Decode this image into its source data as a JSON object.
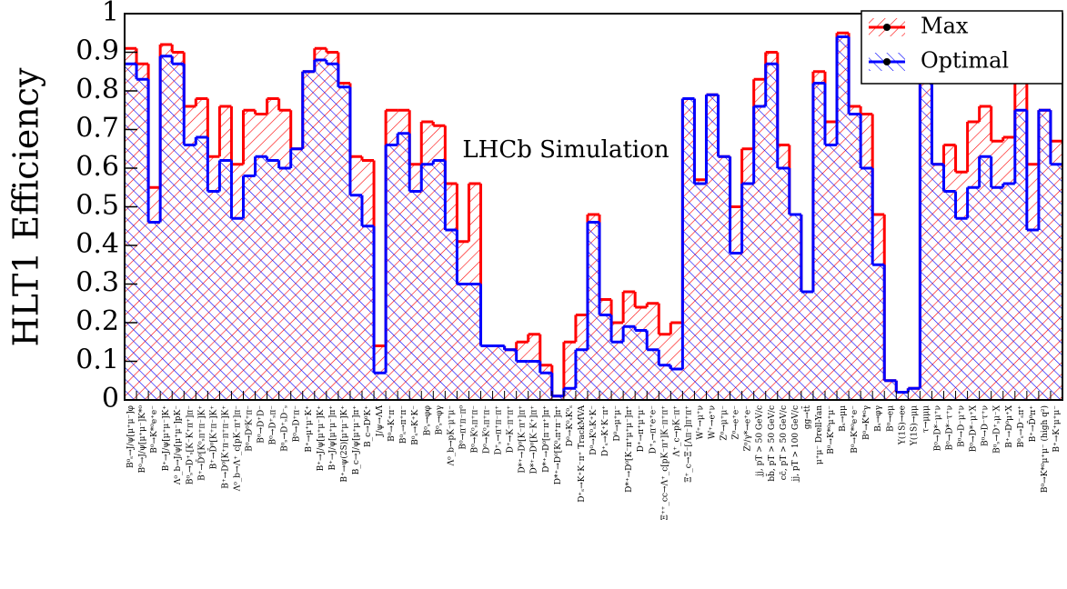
{
  "chart_data": {
    "type": "step-histogram",
    "ylabel": "HLT1 Efficiency",
    "annotation": "LHCb Simulation",
    "ylim": [
      0,
      1
    ],
    "yticks": [
      0,
      0.1,
      0.2,
      0.3,
      0.4,
      0.5,
      0.6,
      0.7,
      0.8,
      0.9,
      1
    ],
    "legend": "upper right",
    "categories": [
      "B⁰ₛ→J/ψ[μ⁺μ⁻]φ",
      "B⁰→J/ψ[μ⁺μ⁻]K*⁰",
      "B⁰→K*⁰e⁺e⁻",
      "B⁺→J/ψ[μ⁺μ⁻]K⁺",
      "Λ⁰_b→J/ψ[μ⁺μ⁻]pK⁻",
      "B⁰ₛ→D⁺ₛ[K⁻K⁺π⁺]π⁻",
      "B⁺→D̄⁰[K⁰ₛπ⁺π⁻]K⁺",
      "B⁺→D̄⁰[K⁺π⁻]K⁺",
      "B⁺→D⁰[K⁺π⁻π⁺π⁻]K⁺",
      "Λ⁰_b→Λ⁺_c[pK⁻π⁺]π⁻",
      "B⁰→D⁰K⁺π⁻",
      "B⁰→D⁺D⁻",
      "B⁰→D⁺ₛπ⁻",
      "B⁰ₛ→D⁺ₛD⁻ₛ",
      "B⁰→D⁺π⁻",
      "B⁺→μ⁺μ⁻K⁺",
      "B⁺→J/ψ[μ⁺μ⁻]K⁺",
      "B⁺→J/ψ[μ⁺μ⁻]π⁺",
      "B⁺→ψ(2S)[μ⁺μ⁻]K⁺",
      "B_c→J/ψ[μ⁺μ⁻]π⁺",
      "B_c→D⁰K⁺",
      "J/ψ→ΛΛ̄",
      "B⁰→K⁺π⁻",
      "B⁰ₛ→π⁺π⁻",
      "B⁰ₛ→K⁺K⁻",
      "B⁰ₛ→φφ",
      "B⁰ₛ→φγ",
      "Λ⁰_b→pK⁻μ⁺μ⁻",
      "B⁰→π⁺π⁻π⁰",
      "B⁰→K⁰ₛπ⁺π⁻",
      "D⁰→K⁰ₛπ⁺π⁻",
      "D⁺ₛ→π⁺π⁻π⁺",
      "D⁺→K⁻π⁺π⁺",
      "D*⁺→D⁰[K⁻π⁺]π⁺",
      "D*⁺→D⁰[K⁻K⁺]π⁺",
      "D*⁺→D⁰[π⁻π⁺]π⁺",
      "D*⁺→D⁰[K⁰ₛπ⁺π⁻]π⁺",
      "D⁰→K⁰ₛK⁰ₛ",
      "D⁺ₛ→K⁺K⁻π⁺ TrackMVA",
      "D⁰→K⁰ₛK⁺K⁻",
      "D⁺ₛ→K⁺K⁻π⁺",
      "D⁰→μ⁺μ⁻",
      "D*⁺→D⁰[K⁻π⁺μ⁺μ⁻]π⁺",
      "D⁺→π⁺μ⁺μ⁻",
      "D⁺ₛ→π⁺e⁺e⁻",
      "Ξ⁺⁺_cc→Λ⁺_c[pK⁻π⁺]K⁻π⁺π⁺",
      "Λ⁺_c→pK⁻π⁺",
      "Ξ⁺_c→Ξ⁻[Λπ⁻]π⁺π⁺",
      "W⁺→μ⁺ν",
      "W⁺→e⁺ν",
      "Z⁰→μ⁺μ⁻",
      "Z⁰→e⁺e⁻",
      "Z⁰/γ*→e⁺e⁻",
      "jj, pT > 50 GeV/c",
      "bb̄, pT > 50 GeV/c",
      "cc̄, pT > 50 GeV/c",
      "jj, pT > 100 GeV/c",
      "gg→tt̄",
      "μ⁺μ⁻ Drell-Yan",
      "B⁰→K*⁰μ⁺μ⁻",
      "Bₛ→μμ",
      "B⁰→K*⁰e⁺e⁻",
      "B⁰→K*⁰γ",
      "Bₛ→φγ",
      "B⁰→eμ",
      "Υ(1S)→ee",
      "Υ(1S)→μμ",
      "τ→μμμ",
      "B⁰→D*⁻μ⁺ν",
      "B⁰→D*⁻τ⁺ν",
      "B⁰→D⁻μ⁺ν",
      "B⁰→D*⁻μ⁺X",
      "B⁰→D⁻τ⁺ν",
      "B⁰ₛ→D⁺ₛμ⁻X",
      "B⁺→D⁰μ⁺X",
      "B⁰ₛ→D⁻ₛπ⁺",
      "B⁺→D̄⁰π⁺",
      "B⁰→K*⁰μ⁺μ⁻ (high q²)",
      "B⁺→K⁺μ⁺μ⁻"
    ],
    "series": [
      {
        "name": "Max",
        "color": "#ff0000",
        "values": [
          0.91,
          0.87,
          0.55,
          0.92,
          0.9,
          0.76,
          0.78,
          0.63,
          0.76,
          0.61,
          0.75,
          0.74,
          0.78,
          0.75,
          0.65,
          0.85,
          0.91,
          0.9,
          0.82,
          0.63,
          0.62,
          0.14,
          0.75,
          0.75,
          0.61,
          0.72,
          0.71,
          0.56,
          0.41,
          0.56,
          0.14,
          0.14,
          0.13,
          0.15,
          0.17,
          0.09,
          0.01,
          0.15,
          0.22,
          0.48,
          0.26,
          0.2,
          0.28,
          0.24,
          0.25,
          0.17,
          0.2,
          0.78,
          0.57,
          0.79,
          0.63,
          0.5,
          0.65,
          0.83,
          0.9,
          0.66,
          0.48,
          0.28,
          0.85,
          0.72,
          0.95,
          0.76,
          0.74,
          0.48,
          0.05,
          0.02,
          0.03,
          0.9,
          0.61,
          0.66,
          0.59,
          0.72,
          0.76,
          0.67,
          0.68,
          0.83,
          0.61,
          0.75,
          0.67
        ]
      },
      {
        "name": "Optimal",
        "color": "#0000ff",
        "values": [
          0.87,
          0.83,
          0.46,
          0.89,
          0.87,
          0.66,
          0.68,
          0.54,
          0.62,
          0.47,
          0.58,
          0.63,
          0.62,
          0.6,
          0.65,
          0.85,
          0.88,
          0.87,
          0.81,
          0.53,
          0.45,
          0.07,
          0.66,
          0.69,
          0.54,
          0.61,
          0.62,
          0.44,
          0.3,
          0.3,
          0.14,
          0.14,
          0.13,
          0.1,
          0.1,
          0.07,
          0.01,
          0.03,
          0.13,
          0.46,
          0.22,
          0.15,
          0.19,
          0.18,
          0.13,
          0.09,
          0.08,
          0.78,
          0.56,
          0.79,
          0.63,
          0.38,
          0.56,
          0.76,
          0.87,
          0.6,
          0.48,
          0.28,
          0.82,
          0.66,
          0.94,
          0.74,
          0.6,
          0.35,
          0.05,
          0.02,
          0.03,
          0.85,
          0.61,
          0.54,
          0.47,
          0.55,
          0.63,
          0.55,
          0.56,
          0.75,
          0.44,
          0.75,
          0.61
        ]
      }
    ]
  }
}
